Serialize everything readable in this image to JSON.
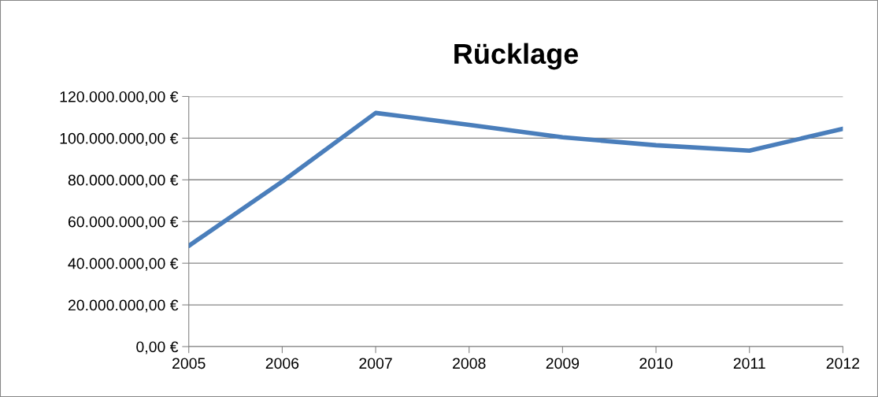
{
  "chart_data": {
    "type": "line",
    "title": "Rücklage",
    "categories": [
      "2005",
      "2006",
      "2007",
      "2008",
      "2009",
      "2010",
      "2011",
      "2012"
    ],
    "series": [
      {
        "color": "#4a7ebb",
        "values": [
          48300000,
          79200000,
          112100000,
          106400000,
          100400000,
          96600000,
          94000000,
          104500000
        ]
      }
    ],
    "ylim": [
      0,
      120000000
    ],
    "yticks": [
      {
        "value": 0,
        "label": "0,00 €"
      },
      {
        "value": 20000000,
        "label": "20.000.000,00 €"
      },
      {
        "value": 40000000,
        "label": "40.000.000,00 €"
      },
      {
        "value": 60000000,
        "label": "60.000.000,00 €"
      },
      {
        "value": 80000000,
        "label": "80.000.000,00 €"
      },
      {
        "value": 100000000,
        "label": "100.000.000,00 €"
      },
      {
        "value": 120000000,
        "label": "120.000.000,00 €"
      }
    ],
    "grid": "y",
    "marker": "none",
    "line_style": "solid"
  }
}
